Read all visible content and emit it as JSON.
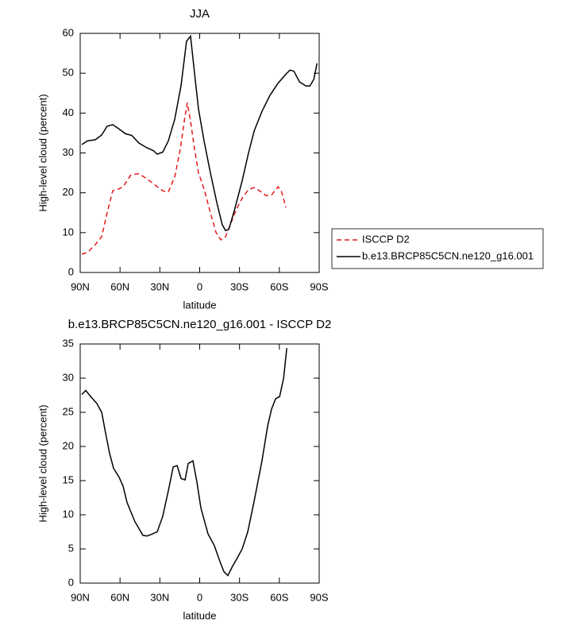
{
  "chart_data": [
    {
      "type": "line",
      "title": "JJA",
      "xlabel": "latitude",
      "ylabel": "High-level cloud (percent)",
      "xlim": [
        90,
        -90
      ],
      "ylim": [
        0,
        60
      ],
      "xticks": [
        {
          "value": 90,
          "label": "90N"
        },
        {
          "value": 60,
          "label": "60N"
        },
        {
          "value": 30,
          "label": "30N"
        },
        0,
        {
          "value": -30,
          "label": "30S"
        },
        {
          "value": -60,
          "label": "60S"
        },
        {
          "value": -90,
          "label": "90S"
        }
      ],
      "yticks": [
        0,
        10,
        20,
        30,
        40,
        50,
        60
      ],
      "legend": "right",
      "series": [
        {
          "name": "ISCCP D2",
          "color": "#e41a1c",
          "dash": true,
          "x": [
            88.8,
            84.6,
            78.6,
            73.8,
            69.7,
            65.5,
            60.7,
            57.7,
            51.8,
            45.8,
            39.8,
            33.8,
            27.8,
            23.6,
            18.8,
            14.6,
            11.6,
            9.3,
            6.9,
            3.9,
            0.9,
            -3.3,
            -8.1,
            -12.3,
            -15.9,
            -19.5,
            -23,
            -27.8,
            -32.6,
            -36.8,
            -41,
            -45.2,
            -50,
            -54.2,
            -59,
            -61.4,
            -65
          ],
          "values": [
            4.6,
            5,
            7,
            9,
            15,
            20.5,
            21,
            21.5,
            24.5,
            24.8,
            23.5,
            22,
            20.5,
            20.2,
            24,
            31,
            38,
            42.6,
            38,
            31,
            25,
            21,
            15,
            10,
            8.2,
            9,
            12,
            16,
            19,
            20.8,
            21.3,
            20.5,
            19.3,
            19.5,
            21.5,
            20.5,
            16.3
          ]
        },
        {
          "name": "b.e13.BRCP85C5CN.ne120_g16.001",
          "color": "#000000",
          "dash": false,
          "x": [
            88.8,
            84.6,
            78.6,
            73.8,
            69.7,
            65.5,
            60.7,
            55.9,
            51.2,
            45.8,
            39.8,
            35,
            32,
            27.8,
            23.6,
            18.8,
            14,
            9.9,
            6.9,
            3.9,
            0.9,
            -3.3,
            -8.1,
            -12.9,
            -17,
            -19.5,
            -21.9,
            -26.1,
            -32,
            -36.8,
            -41,
            -47,
            -53,
            -59,
            -65,
            -68,
            -71,
            -75.2,
            -80,
            -83,
            -86,
            -88.4
          ],
          "values": [
            32.1,
            33,
            33.3,
            34.5,
            36.7,
            37.1,
            36,
            34.8,
            34.4,
            32.5,
            31.3,
            30.6,
            29.7,
            30.2,
            33,
            38.5,
            47,
            58,
            59.3,
            50,
            41,
            33,
            25,
            17.5,
            12,
            10.5,
            10.8,
            15.5,
            23,
            30,
            35.5,
            40.5,
            44.5,
            47.5,
            49.8,
            50.8,
            50.5,
            47.8,
            46.8,
            46.8,
            48.5,
            52.5
          ]
        }
      ]
    },
    {
      "type": "line",
      "title": "b.e13.BRCP85C5CN.ne120_g16.001 - ISCCP D2",
      "xlabel": "latitude",
      "ylabel": "High-level cloud (percent)",
      "xlim": [
        90,
        -90
      ],
      "ylim": [
        0,
        35
      ],
      "xticks": [
        {
          "value": 90,
          "label": "90N"
        },
        {
          "value": 60,
          "label": "60N"
        },
        {
          "value": 30,
          "label": "30N"
        },
        0,
        {
          "value": -30,
          "label": "30S"
        },
        {
          "value": -60,
          "label": "60S"
        },
        {
          "value": -90,
          "label": "90S"
        }
      ],
      "yticks": [
        0,
        5,
        10,
        15,
        20,
        25,
        30,
        35
      ],
      "series": [
        {
          "color": "#000000",
          "dash": false,
          "x": [
            88.8,
            85.8,
            81.6,
            77.5,
            73.8,
            70.9,
            67.9,
            64.9,
            60.7,
            57.7,
            54.7,
            48.8,
            42.8,
            39.8,
            36.8,
            32,
            27.8,
            23.6,
            20,
            17,
            14,
            11,
            8.7,
            5.1,
            2.1,
            -0.9,
            -6.3,
            -11,
            -15.2,
            -18.2,
            -21.2,
            -24.8,
            -27.8,
            -32,
            -36.2,
            -41,
            -47,
            -51.2,
            -54.2,
            -57.2,
            -60.2,
            -63.2,
            -65.6
          ],
          "values": [
            27.6,
            28.2,
            27.2,
            26.3,
            25,
            22,
            19,
            16.8,
            15.5,
            14.2,
            11.8,
            9,
            7,
            6.9,
            7.1,
            7.5,
            9.8,
            13.5,
            17,
            17.2,
            15.3,
            15.1,
            17.5,
            17.9,
            14.8,
            11,
            7.2,
            5.5,
            3.2,
            1.7,
            1.1,
            2.5,
            3.5,
            5,
            7.5,
            12,
            18,
            23,
            25.5,
            27,
            27.3,
            30,
            34.4
          ]
        }
      ]
    }
  ]
}
